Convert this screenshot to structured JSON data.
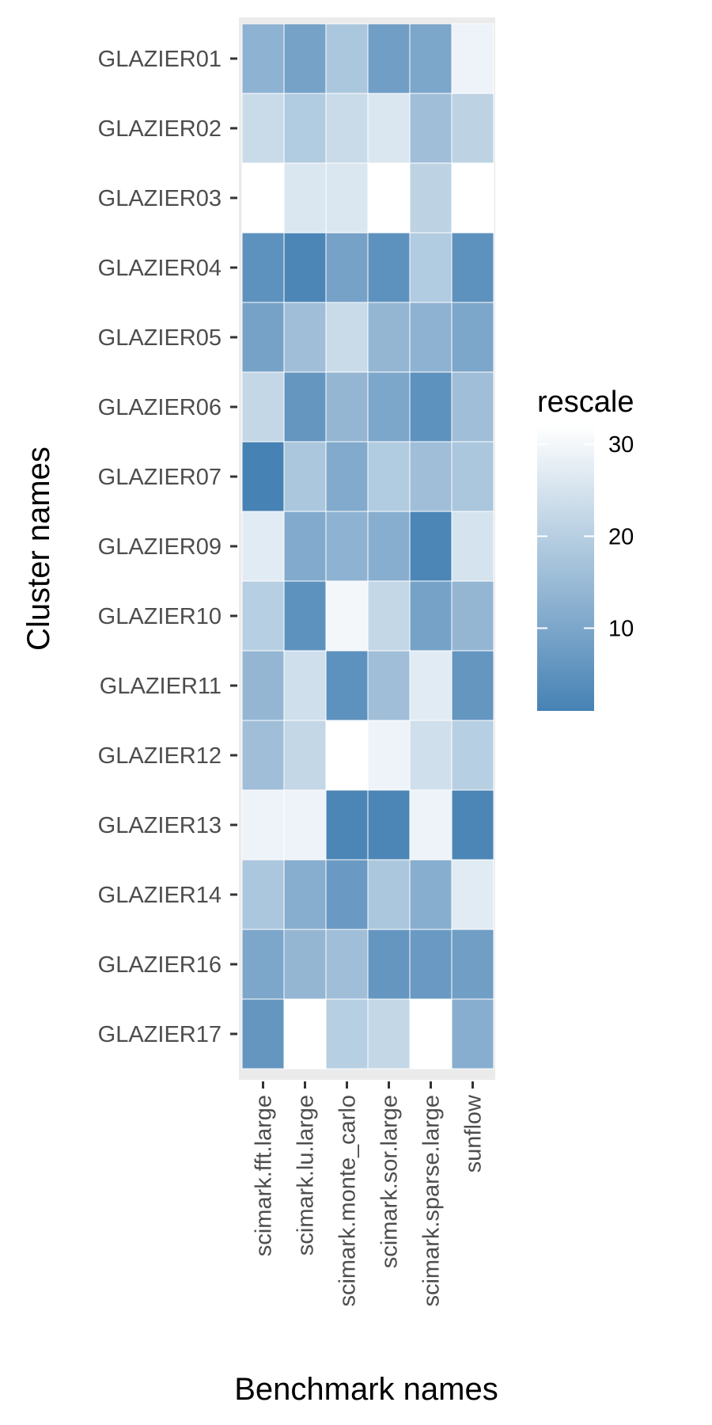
{
  "chart_data": {
    "type": "heatmap",
    "xlabel": "Benchmark names",
    "ylabel": "Cluster names",
    "x": [
      "scimark.fft.large",
      "scimark.lu.large",
      "scimark.monte_carlo",
      "scimark.sor.large",
      "scimark.sparse.large",
      "sunflow"
    ],
    "y": [
      "GLAZIER01",
      "GLAZIER02",
      "GLAZIER03",
      "GLAZIER04",
      "GLAZIER05",
      "GLAZIER06",
      "GLAZIER07",
      "GLAZIER09",
      "GLAZIER10",
      "GLAZIER11",
      "GLAZIER12",
      "GLAZIER13",
      "GLAZIER14",
      "GLAZIER16",
      "GLAZIER17"
    ],
    "values": [
      [
        13,
        9,
        18,
        8,
        10,
        29
      ],
      [
        23,
        19,
        23,
        26,
        16,
        21
      ],
      [
        32,
        26,
        26,
        32,
        21,
        32
      ],
      [
        5,
        2,
        9,
        5,
        19,
        5
      ],
      [
        9,
        16,
        23,
        14,
        13,
        10
      ],
      [
        22,
        6,
        14,
        10,
        5,
        16
      ],
      [
        1,
        18,
        11,
        19,
        16,
        18
      ],
      [
        27,
        11,
        13,
        12,
        2,
        25
      ],
      [
        20,
        5,
        30,
        22,
        9,
        14
      ],
      [
        14,
        24,
        5,
        16,
        27,
        6
      ],
      [
        16,
        22,
        32,
        29,
        24,
        20
      ],
      [
        29,
        29,
        2,
        2,
        29,
        2
      ],
      [
        18,
        12,
        7,
        18,
        12,
        27
      ],
      [
        10,
        14,
        16,
        6,
        7,
        8
      ],
      [
        6,
        32,
        20,
        22,
        32,
        12
      ]
    ],
    "legend": {
      "title": "rescale",
      "ticks": [
        10,
        20,
        30
      ],
      "range": [
        1,
        32
      ],
      "position": "right"
    },
    "color_low": "#4682b4",
    "color_high": "#ffffff",
    "panel_background": "#ebebeb",
    "grid": true
  }
}
